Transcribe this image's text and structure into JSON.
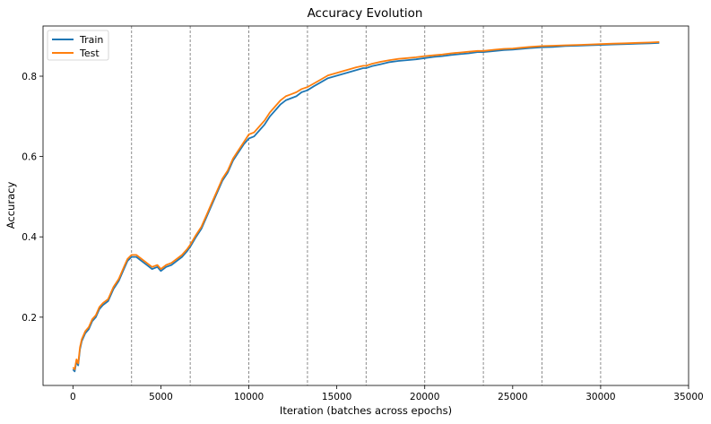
{
  "chart_data": {
    "type": "line",
    "title": "Accuracy Evolution",
    "xlabel": "Iteration (batches across epochs)",
    "ylabel": "Accuracy",
    "xlim": [
      -1700,
      35000
    ],
    "ylim": [
      0.03,
      0.925
    ],
    "x_ticks": [
      0,
      5000,
      10000,
      15000,
      20000,
      25000,
      30000,
      35000
    ],
    "x_tick_labels": [
      "0",
      "5000",
      "10000",
      "15000",
      "20000",
      "25000",
      "30000",
      "35000"
    ],
    "y_ticks": [
      0.2,
      0.4,
      0.6,
      0.8
    ],
    "y_tick_labels": [
      "0.2",
      "0.4",
      "0.6",
      "0.8"
    ],
    "epoch_boundaries": [
      3333,
      6667,
      10000,
      13333,
      16667,
      20000,
      23333,
      26667,
      30000
    ],
    "grid": false,
    "legend_position": "upper-left",
    "series": [
      {
        "name": "Train",
        "color": "#1f77b4",
        "x": [
          0,
          100,
          200,
          300,
          400,
          500,
          700,
          900,
          1100,
          1300,
          1500,
          1700,
          2000,
          2300,
          2600,
          2900,
          3100,
          3333,
          3600,
          3900,
          4200,
          4500,
          4800,
          5000,
          5300,
          5600,
          5900,
          6200,
          6500,
          6667,
          7000,
          7300,
          7600,
          7900,
          8200,
          8500,
          8800,
          9100,
          9400,
          9700,
          10000,
          10300,
          10600,
          10900,
          11200,
          11500,
          11800,
          12100,
          12400,
          12700,
          13000,
          13333,
          13700,
          14100,
          14500,
          14900,
          15300,
          15700,
          16100,
          16500,
          16667,
          17000,
          17500,
          18000,
          18500,
          19000,
          19500,
          20000,
          20500,
          21000,
          21500,
          22000,
          22500,
          23000,
          23333,
          24000,
          24500,
          25000,
          25500,
          26000,
          26667,
          27300,
          28000,
          28700,
          29400,
          30000,
          30700,
          31400,
          32100,
          32800,
          33333
        ],
        "y": [
          0.07,
          0.065,
          0.09,
          0.08,
          0.12,
          0.14,
          0.16,
          0.17,
          0.19,
          0.2,
          0.22,
          0.23,
          0.24,
          0.27,
          0.29,
          0.32,
          0.34,
          0.35,
          0.35,
          0.34,
          0.33,
          0.32,
          0.325,
          0.315,
          0.325,
          0.33,
          0.34,
          0.35,
          0.365,
          0.375,
          0.4,
          0.42,
          0.45,
          0.48,
          0.51,
          0.54,
          0.56,
          0.59,
          0.61,
          0.63,
          0.645,
          0.65,
          0.665,
          0.68,
          0.7,
          0.715,
          0.73,
          0.74,
          0.745,
          0.75,
          0.76,
          0.765,
          0.775,
          0.785,
          0.795,
          0.8,
          0.805,
          0.81,
          0.815,
          0.82,
          0.82,
          0.825,
          0.83,
          0.835,
          0.838,
          0.84,
          0.842,
          0.845,
          0.848,
          0.85,
          0.853,
          0.855,
          0.857,
          0.86,
          0.86,
          0.863,
          0.865,
          0.866,
          0.868,
          0.87,
          0.872,
          0.873,
          0.875,
          0.876,
          0.877,
          0.878,
          0.879,
          0.88,
          0.881,
          0.882,
          0.883
        ]
      },
      {
        "name": "Test",
        "color": "#ff7f0e",
        "x": [
          0,
          100,
          200,
          300,
          400,
          500,
          700,
          900,
          1100,
          1300,
          1500,
          1700,
          2000,
          2300,
          2600,
          2900,
          3100,
          3333,
          3600,
          3900,
          4200,
          4500,
          4800,
          5000,
          5300,
          5600,
          5900,
          6200,
          6500,
          6667,
          7000,
          7300,
          7600,
          7900,
          8200,
          8500,
          8800,
          9100,
          9400,
          9700,
          10000,
          10300,
          10600,
          10900,
          11200,
          11500,
          11800,
          12100,
          12400,
          12700,
          13000,
          13333,
          13700,
          14100,
          14500,
          14900,
          15300,
          15700,
          16100,
          16500,
          16667,
          17000,
          17500,
          18000,
          18500,
          19000,
          19500,
          20000,
          20500,
          21000,
          21500,
          22000,
          22500,
          23000,
          23333,
          24000,
          24500,
          25000,
          25500,
          26000,
          26667,
          27300,
          28000,
          28700,
          29400,
          30000,
          30700,
          31400,
          32100,
          32800,
          33333
        ],
        "y": [
          0.075,
          0.07,
          0.095,
          0.085,
          0.125,
          0.145,
          0.165,
          0.175,
          0.195,
          0.205,
          0.225,
          0.235,
          0.245,
          0.275,
          0.295,
          0.325,
          0.345,
          0.355,
          0.355,
          0.345,
          0.335,
          0.325,
          0.33,
          0.32,
          0.33,
          0.335,
          0.345,
          0.355,
          0.37,
          0.38,
          0.405,
          0.425,
          0.455,
          0.485,
          0.515,
          0.545,
          0.565,
          0.595,
          0.615,
          0.635,
          0.655,
          0.66,
          0.675,
          0.69,
          0.71,
          0.725,
          0.74,
          0.75,
          0.755,
          0.76,
          0.768,
          0.773,
          0.782,
          0.792,
          0.802,
          0.807,
          0.812,
          0.817,
          0.822,
          0.826,
          0.826,
          0.831,
          0.836,
          0.84,
          0.843,
          0.845,
          0.847,
          0.85,
          0.852,
          0.854,
          0.857,
          0.859,
          0.861,
          0.863,
          0.863,
          0.866,
          0.868,
          0.869,
          0.871,
          0.873,
          0.875,
          0.876,
          0.877,
          0.878,
          0.879,
          0.88,
          0.881,
          0.882,
          0.883,
          0.884,
          0.885
        ]
      }
    ]
  }
}
